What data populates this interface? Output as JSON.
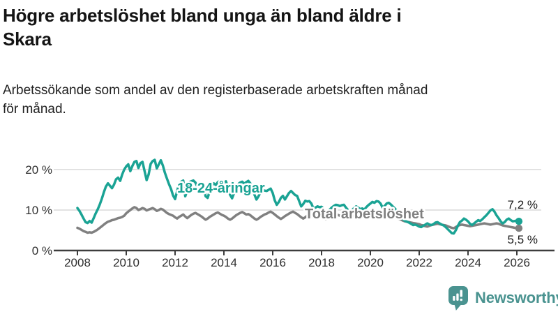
{
  "header": {
    "title_lines": [
      "Högre arbetslöshet bland unga än bland äldre i",
      "Skara"
    ],
    "subtitle_lines": [
      "Arbetssökande som andel av den registerbaserade arbetskraften månad",
      "för månad."
    ]
  },
  "footer": {
    "brand": "Newsworthy",
    "brand_color": "#4a9390",
    "logo_icon": "bar-chart-speech-bubble"
  },
  "chart_data": {
    "type": "line",
    "unit": "%",
    "frequency": "monthly",
    "x_start_year": 2008,
    "x_end_label_period": "early 2026",
    "x_ticks": [
      2008,
      2010,
      2012,
      2014,
      2016,
      2018,
      2020,
      2022,
      2024,
      2026
    ],
    "y_ticks": [
      0,
      10,
      20
    ],
    "y_tick_labels": [
      "0 %",
      "10 %",
      "20 %"
    ],
    "ylim": [
      0,
      24
    ],
    "grid": "horizontal",
    "legend_position": "inline-labels",
    "series": [
      {
        "name": "18-24-åringar",
        "color": "#1aa394",
        "end_label": "7,2 %",
        "end_value": 7.2,
        "values": [
          10.5,
          9.8,
          8.9,
          7.9,
          7.0,
          6.8,
          7.3,
          6.9,
          8.0,
          9.2,
          10.2,
          11.4,
          12.8,
          14.4,
          15.8,
          16.6,
          16.0,
          15.4,
          16.3,
          17.6,
          18.0,
          17.2,
          18.8,
          20.0,
          20.8,
          21.3,
          19.6,
          20.9,
          21.9,
          22.1,
          20.4,
          21.6,
          21.9,
          19.6,
          17.4,
          18.8,
          21.4,
          22.1,
          22.4,
          20.3,
          21.3,
          22.3,
          21.0,
          19.2,
          17.8,
          16.4,
          15.2,
          13.6,
          12.7,
          14.6,
          16.6,
          17.0,
          17.3,
          13.4,
          14.8,
          16.9,
          17.1,
          17.3,
          16.8,
          15.7,
          16.2,
          16.8,
          15.8,
          13.4,
          13.0,
          14.6,
          16.0,
          16.6,
          16.2,
          16.9,
          17.2,
          16.4,
          16.8,
          17.1,
          15.6,
          13.8,
          12.9,
          14.2,
          15.6,
          16.4,
          16.8,
          17.0,
          16.5,
          16.9,
          17.2,
          16.6,
          15.4,
          13.8,
          12.6,
          13.4,
          14.4,
          15.0,
          14.8,
          14.7,
          15.0,
          15.3,
          14.2,
          12.4,
          11.3,
          12.0,
          13.0,
          13.5,
          12.6,
          13.4,
          14.2,
          14.7,
          14.2,
          13.7,
          13.5,
          12.2,
          10.9,
          11.5,
          12.3,
          12.1,
          12.2,
          11.6,
          10.4,
          10.6,
          10.9,
          10.7,
          10.8,
          10.3,
          9.8,
          9.7,
          10.1,
          10.6,
          11.0,
          11.3,
          11.2,
          11.0,
          11.2,
          11.3,
          10.6,
          10.0,
          9.7,
          10.0,
          10.5,
          10.9,
          10.6,
          10.2,
          10.4,
          10.1,
          10.7,
          11.2,
          11.6,
          12.0,
          11.8,
          12.2,
          12.1,
          11.6,
          10.6,
          11.0,
          11.6,
          11.8,
          11.4,
          10.9,
          10.4,
          9.8,
          9.1,
          8.4,
          7.8,
          7.3,
          7.1,
          6.9,
          6.6,
          6.3,
          6.4,
          6.2,
          5.9,
          5.8,
          6.1,
          6.4,
          6.7,
          6.4,
          6.3,
          6.5,
          6.9,
          7.0,
          6.7,
          6.4,
          6.2,
          5.8,
          5.3,
          4.8,
          4.3,
          4.2,
          5.0,
          6.1,
          7.0,
          7.4,
          7.9,
          7.6,
          7.2,
          6.6,
          6.3,
          6.7,
          7.1,
          7.5,
          7.3,
          7.7,
          8.2,
          8.7,
          9.3,
          9.9,
          10.2,
          9.6,
          8.7,
          8.0,
          7.2,
          6.7,
          7.0,
          7.6,
          7.9,
          7.5,
          7.2,
          7.3,
          7.4,
          7.2
        ]
      },
      {
        "name": "Total arbetslöshet",
        "color": "#808080",
        "end_label": "5,5 %",
        "end_value": 5.5,
        "values": [
          5.6,
          5.4,
          5.1,
          4.8,
          4.6,
          4.4,
          4.5,
          4.4,
          4.6,
          4.9,
          5.2,
          5.6,
          6.0,
          6.4,
          6.8,
          7.1,
          7.3,
          7.5,
          7.6,
          7.8,
          8.0,
          8.1,
          8.3,
          8.6,
          9.2,
          9.6,
          10.0,
          10.4,
          10.7,
          10.5,
          10.0,
          10.2,
          10.5,
          10.3,
          9.9,
          10.1,
          10.3,
          10.5,
          10.2,
          9.8,
          10.0,
          10.3,
          10.1,
          9.7,
          9.3,
          9.0,
          8.8,
          8.6,
          8.2,
          7.9,
          8.3,
          8.6,
          8.9,
          8.4,
          8.0,
          8.4,
          8.8,
          9.1,
          9.3,
          9.0,
          8.7,
          8.4,
          8.0,
          7.6,
          7.9,
          8.3,
          8.6,
          8.9,
          9.2,
          9.4,
          9.1,
          8.8,
          8.6,
          8.3,
          7.9,
          7.6,
          7.9,
          8.3,
          8.7,
          9.0,
          9.3,
          9.5,
          9.2,
          8.9,
          9.0,
          8.7,
          8.3,
          7.9,
          7.6,
          7.9,
          8.3,
          8.6,
          8.9,
          9.1,
          9.4,
          9.6,
          9.3,
          8.9,
          8.5,
          8.1,
          7.8,
          8.1,
          8.5,
          8.8,
          9.1,
          9.4,
          9.6,
          9.3,
          9.0,
          8.6,
          8.2,
          7.9,
          8.2,
          8.6,
          8.9,
          9.2,
          9.0,
          8.8,
          8.6,
          8.4,
          8.2,
          8.0,
          7.8,
          8.0,
          8.3,
          8.6,
          8.9,
          9.1,
          8.8,
          8.6,
          8.4,
          8.2,
          8.0,
          7.9,
          8.1,
          8.3,
          8.6,
          8.8,
          9.0,
          8.8,
          8.6,
          8.4,
          8.3,
          8.5,
          8.7,
          8.9,
          9.1,
          9.3,
          9.2,
          9.0,
          8.8,
          8.9,
          9.0,
          8.8,
          8.6,
          8.4,
          8.2,
          8.0,
          7.8,
          7.6,
          7.4,
          7.2,
          7.1,
          7.0,
          6.9,
          6.8,
          6.7,
          6.6,
          6.5,
          6.3,
          6.2,
          6.0,
          5.9,
          6.1,
          6.3,
          6.4,
          6.5,
          6.6,
          6.5,
          6.4,
          6.3,
          6.2,
          6.0,
          5.8,
          5.6,
          5.5,
          5.8,
          6.1,
          6.3,
          6.4,
          6.3,
          6.2,
          6.1,
          6.0,
          6.1,
          6.2,
          6.3,
          6.4,
          6.5,
          6.6,
          6.7,
          6.6,
          6.5,
          6.4,
          6.5,
          6.6,
          6.7,
          6.6,
          6.4,
          6.2,
          6.1,
          6.0,
          5.9,
          5.8,
          5.7,
          5.6,
          5.5,
          5.5
        ]
      }
    ]
  }
}
